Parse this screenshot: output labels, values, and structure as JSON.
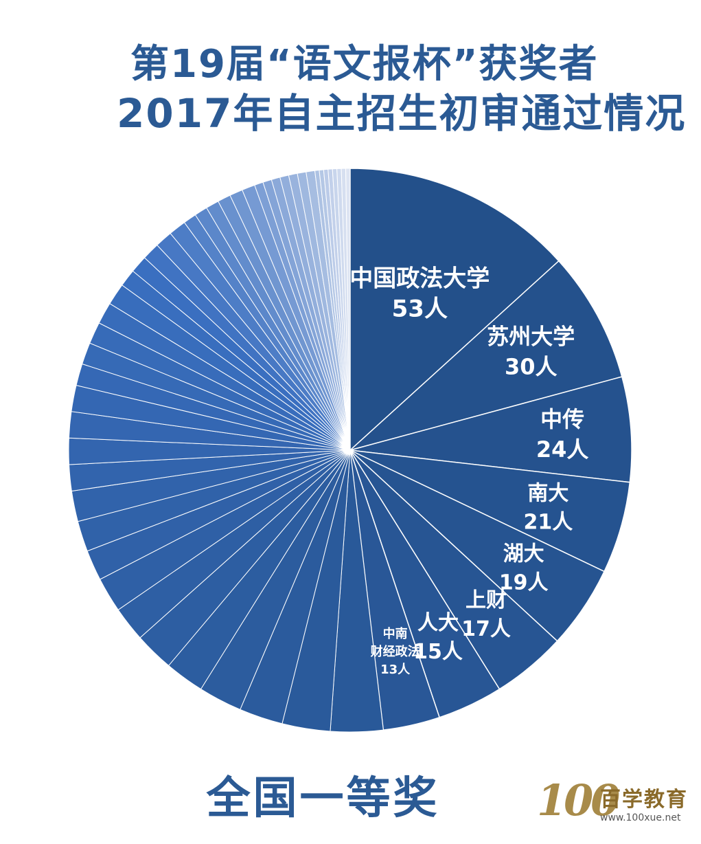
{
  "title": {
    "line1": "第19届“语文报杯”获奖者",
    "line2": "2017年自主招生初审通过情况"
  },
  "footer": {
    "caption": "全国一等奖"
  },
  "logo": {
    "number": "100",
    "brand": "百学教育",
    "url": "www.100xue.net"
  },
  "colors": {
    "title": "#2b5a94",
    "slice_dark": "#23508a",
    "slice_mid": "#3a6fc0",
    "slice_light": "#dde4f2",
    "label": "#ffffff"
  },
  "chart_data": {
    "type": "pie",
    "title": "第19届“语文报杯”获奖者 2017年自主招生初审通过情况",
    "slices": [
      {
        "name": "中国政法大学",
        "count": "53人",
        "value": 53,
        "label_lines": [
          "中国政法大学",
          "53人"
        ]
      },
      {
        "name": "苏州大学",
        "count": "30人",
        "value": 30,
        "label_lines": [
          "苏州大学",
          "30人"
        ]
      },
      {
        "name": "中传",
        "count": "24人",
        "value": 24,
        "label_lines": [
          "中传",
          "24人"
        ]
      },
      {
        "name": "南大",
        "count": "21人",
        "value": 21,
        "label_lines": [
          "南大",
          "21人"
        ]
      },
      {
        "name": "湖大",
        "count": "19人",
        "value": 19,
        "label_lines": [
          "湖大",
          "19人"
        ]
      },
      {
        "name": "上财",
        "count": "17人",
        "value": 17,
        "label_lines": [
          "上财",
          "17人"
        ]
      },
      {
        "name": "人大",
        "count": "15人",
        "value": 15,
        "label_lines": [
          "人大",
          "15人"
        ]
      },
      {
        "name": "中南财经政法",
        "count": "13人",
        "value": 13,
        "label_lines": [
          "中南",
          "财经政法",
          "13人"
        ]
      }
    ],
    "unlabeled_slices": [
      12,
      11,
      10,
      10,
      9,
      9,
      8,
      8,
      7,
      7,
      7,
      6,
      6,
      6,
      6,
      5,
      5,
      5,
      5,
      5,
      4,
      4,
      4,
      4,
      4,
      3,
      3,
      3,
      3,
      3,
      3,
      2,
      2,
      2,
      2,
      2,
      2,
      2,
      1,
      1,
      1,
      1,
      1,
      1,
      1,
      1
    ]
  }
}
